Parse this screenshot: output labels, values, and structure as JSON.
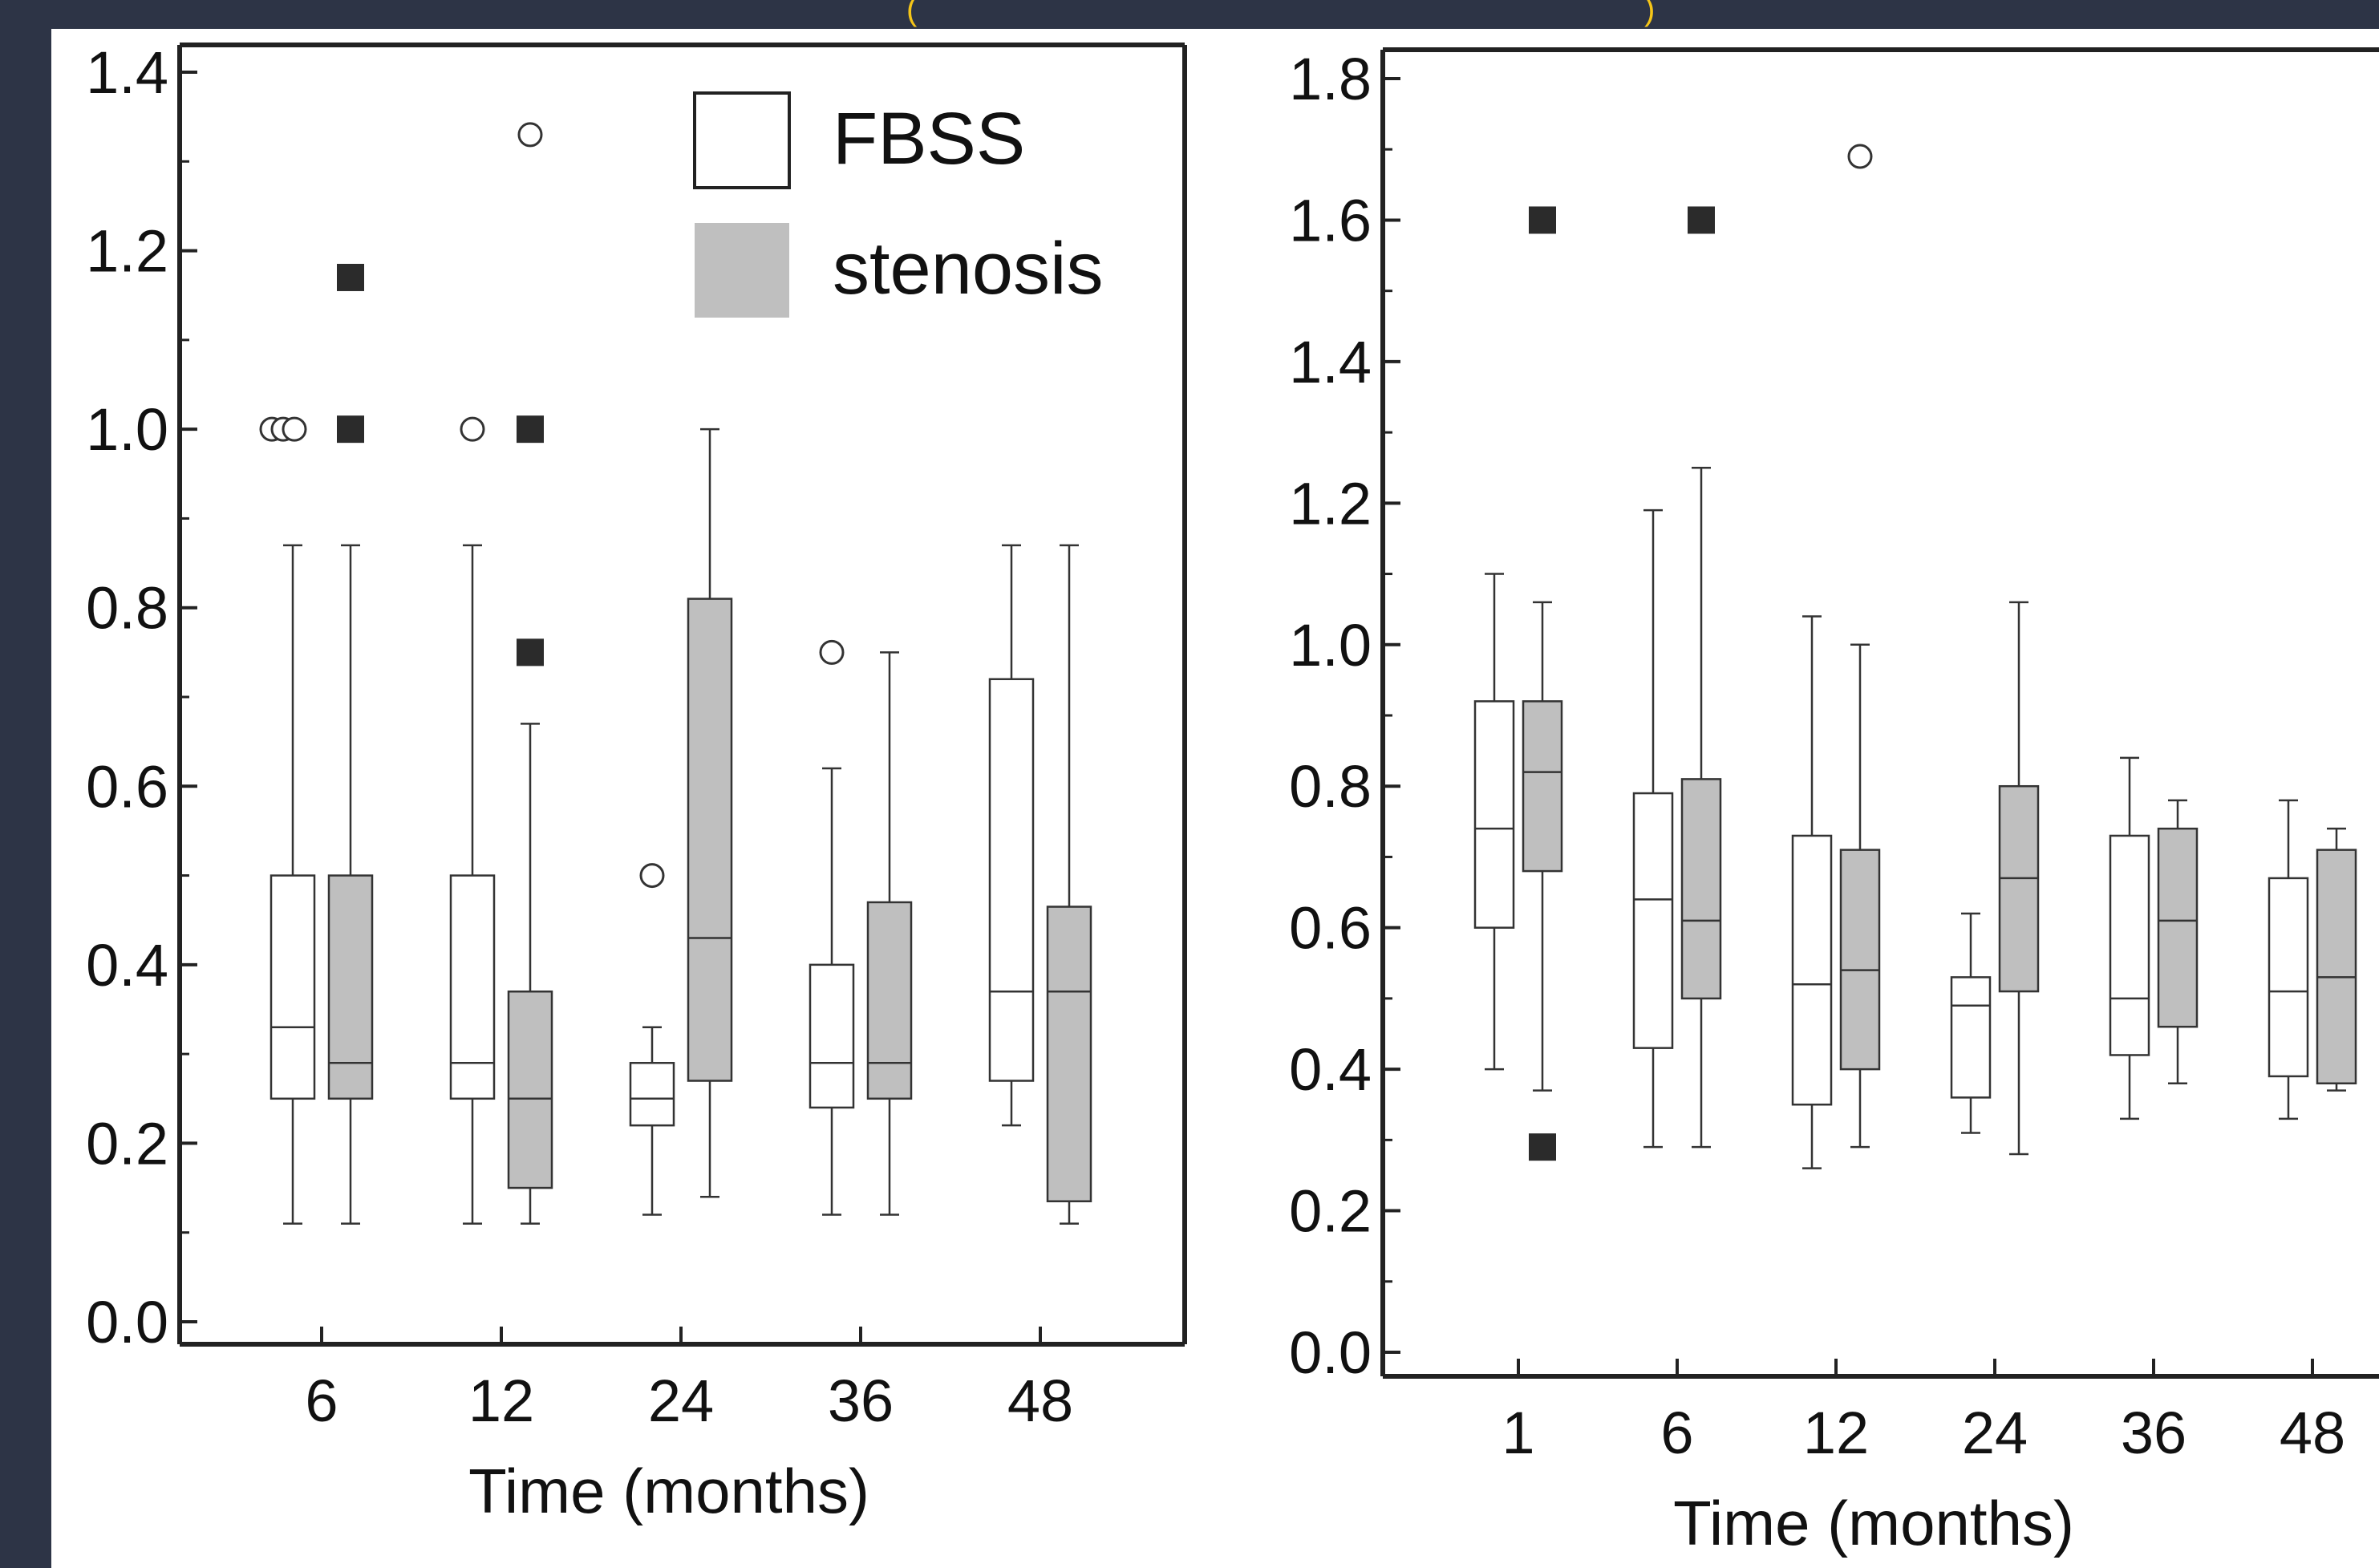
{
  "chart_data": [
    {
      "type": "box",
      "title": "",
      "xlabel": "Time (months)",
      "ylabel": "",
      "ylim": [
        0.0,
        1.4
      ],
      "yticks": [
        "0.0",
        "0.2",
        "0.4",
        "0.6",
        "0.8",
        "1.0",
        "1.2",
        "1.4"
      ],
      "categories": [
        "6",
        "12",
        "24",
        "36",
        "48"
      ],
      "legend": {
        "placement": "top-right",
        "entries": [
          "FBSS",
          "stenosis"
        ]
      },
      "series": [
        {
          "name": "FBSS",
          "color": "#ffffff",
          "boxes": [
            {
              "min": 0.11,
              "q1": 0.25,
              "median": 0.33,
              "q3": 0.5,
              "max": 0.87,
              "outliers": [
                1.0,
                1.0,
                1.0
              ],
              "extremes": []
            },
            {
              "min": 0.11,
              "q1": 0.25,
              "median": 0.29,
              "q3": 0.5,
              "max": 0.87,
              "outliers": [
                1.0
              ],
              "extremes": []
            },
            {
              "min": 0.12,
              "q1": 0.22,
              "median": 0.25,
              "q3": 0.29,
              "max": 0.33,
              "outliers": [
                0.5
              ],
              "extremes": []
            },
            {
              "min": 0.12,
              "q1": 0.24,
              "median": 0.29,
              "q3": 0.4,
              "max": 0.62,
              "outliers": [
                0.75
              ],
              "extremes": []
            },
            {
              "min": 0.22,
              "q1": 0.27,
              "median": 0.37,
              "q3": 0.72,
              "max": 0.87,
              "outliers": [],
              "extremes": []
            }
          ]
        },
        {
          "name": "stenosis",
          "color": "#bfbfbf",
          "boxes": [
            {
              "min": 0.11,
              "q1": 0.25,
              "median": 0.29,
              "q3": 0.5,
              "max": 0.87,
              "outliers": [],
              "extremes": [
                1.17,
                1.0
              ]
            },
            {
              "min": 0.11,
              "q1": 0.15,
              "median": 0.25,
              "q3": 0.37,
              "max": 0.67,
              "outliers": [
                1.33
              ],
              "extremes": [
                1.0,
                0.75
              ]
            },
            {
              "min": 0.14,
              "q1": 0.27,
              "median": 0.43,
              "q3": 0.81,
              "max": 1.0,
              "outliers": [],
              "extremes": []
            },
            {
              "min": 0.12,
              "q1": 0.25,
              "median": 0.29,
              "q3": 0.47,
              "max": 0.75,
              "outliers": [],
              "extremes": []
            },
            {
              "min": 0.11,
              "q1": 0.135,
              "median": 0.37,
              "q3": 0.465,
              "max": 0.87,
              "outliers": [],
              "extremes": []
            }
          ]
        }
      ]
    },
    {
      "type": "box",
      "title": "",
      "xlabel": "Time (months)",
      "ylabel": "",
      "ylim": [
        0.0,
        1.8
      ],
      "yticks": [
        "0.0",
        "0.2",
        "0.4",
        "0.6",
        "0.8",
        "1.0",
        "1.2",
        "1.4",
        "1.6",
        "1.8"
      ],
      "categories": [
        "1",
        "6",
        "12",
        "24",
        "36",
        "48"
      ],
      "series": [
        {
          "name": "FBSS",
          "color": "#ffffff",
          "boxes": [
            {
              "min": 0.4,
              "q1": 0.6,
              "median": 0.74,
              "q3": 0.92,
              "max": 1.1,
              "outliers": [],
              "extremes": []
            },
            {
              "min": 0.29,
              "q1": 0.43,
              "median": 0.64,
              "q3": 0.79,
              "max": 1.19,
              "outliers": [],
              "extremes": []
            },
            {
              "min": 0.26,
              "q1": 0.35,
              "median": 0.52,
              "q3": 0.73,
              "max": 1.04,
              "outliers": [],
              "extremes": []
            },
            {
              "min": 0.31,
              "q1": 0.36,
              "median": 0.49,
              "q3": 0.53,
              "max": 0.62,
              "outliers": [],
              "extremes": []
            },
            {
              "min": 0.33,
              "q1": 0.42,
              "median": 0.5,
              "q3": 0.73,
              "max": 0.84,
              "outliers": [],
              "extremes": []
            },
            {
              "min": 0.33,
              "q1": 0.39,
              "median": 0.51,
              "q3": 0.67,
              "max": 0.78,
              "outliers": [],
              "extremes": []
            }
          ]
        },
        {
          "name": "stenosis",
          "color": "#bfbfbf",
          "boxes": [
            {
              "min": 0.37,
              "q1": 0.68,
              "median": 0.82,
              "q3": 0.92,
              "max": 1.06,
              "outliers": [],
              "extremes": [
                1.6,
                0.29
              ]
            },
            {
              "min": 0.29,
              "q1": 0.5,
              "median": 0.61,
              "q3": 0.81,
              "max": 1.25,
              "outliers": [],
              "extremes": [
                1.6
              ]
            },
            {
              "min": 0.29,
              "q1": 0.4,
              "median": 0.54,
              "q3": 0.71,
              "max": 1.0,
              "outliers": [
                1.69
              ],
              "extremes": []
            },
            {
              "min": 0.28,
              "q1": 0.51,
              "median": 0.67,
              "q3": 0.8,
              "max": 1.06,
              "outliers": [],
              "extremes": []
            },
            {
              "min": 0.38,
              "q1": 0.46,
              "median": 0.61,
              "q3": 0.74,
              "max": 0.78,
              "outliers": [],
              "extremes": []
            },
            {
              "min": 0.37,
              "q1": 0.38,
              "median": 0.53,
              "q3": 0.71,
              "max": 0.74,
              "outliers": [],
              "extremes": []
            }
          ]
        }
      ]
    }
  ]
}
